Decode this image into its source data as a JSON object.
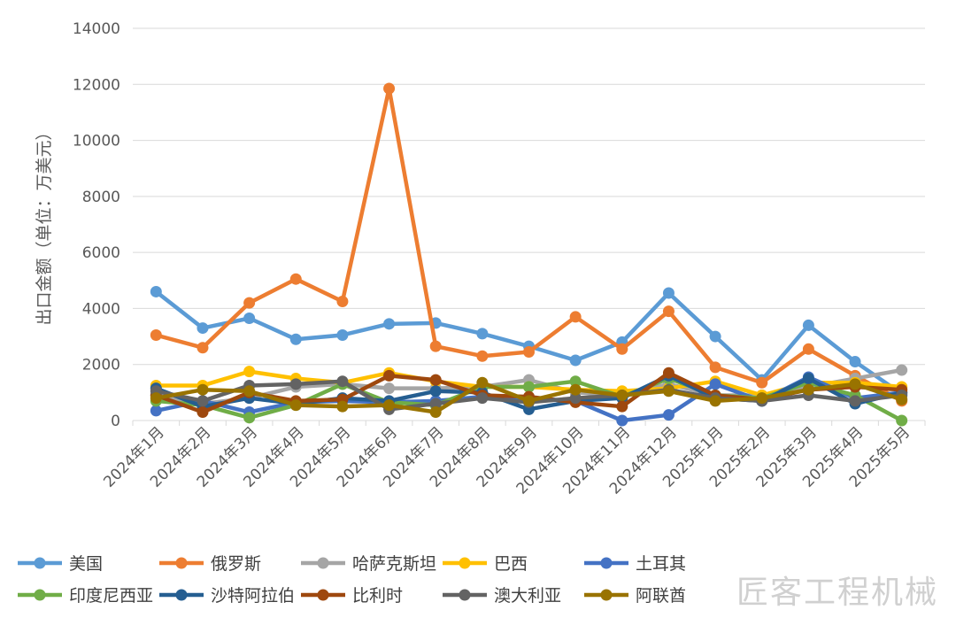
{
  "chart_data": {
    "type": "line",
    "title": "",
    "xlabel": "",
    "ylabel": "出口金额（单位：万美元）",
    "ylim": [
      0,
      14000
    ],
    "yticks": [
      0,
      2000,
      4000,
      6000,
      8000,
      10000,
      12000,
      14000
    ],
    "grid": true,
    "legend": "bottom",
    "categories": [
      "2024年1月",
      "2024年2月",
      "2024年3月",
      "2024年4月",
      "2024年5月",
      "2024年6月",
      "2024年7月",
      "2024年8月",
      "2024年9月",
      "2024年10月",
      "2024年11月",
      "2024年12月",
      "2025年1月",
      "2025年2月",
      "2025年3月",
      "2025年4月",
      "2025年5月"
    ],
    "series": [
      {
        "name": "美国",
        "color": "#5b9bd5",
        "values": [
          4600,
          3300,
          3650,
          2900,
          3050,
          3450,
          3480,
          3100,
          2650,
          2150,
          2800,
          4550,
          3000,
          1450,
          3400,
          2100,
          950
        ]
      },
      {
        "name": "俄罗斯",
        "color": "#ed7d31",
        "values": [
          3050,
          2600,
          4200,
          5050,
          4250,
          11850,
          2650,
          2300,
          2450,
          3700,
          2550,
          3900,
          1900,
          1350,
          2550,
          1600,
          700
        ]
      },
      {
        "name": "哈萨克斯坦",
        "color": "#a5a5a5",
        "values": [
          900,
          600,
          800,
          1200,
          1300,
          1150,
          1150,
          1200,
          1450,
          1000,
          900,
          1300,
          900,
          900,
          1200,
          1500,
          1800
        ]
      },
      {
        "name": "巴西",
        "color": "#ffc000",
        "values": [
          1250,
          1250,
          1750,
          1500,
          1350,
          1700,
          1400,
          1200,
          1200,
          1100,
          1050,
          1150,
          1400,
          900,
          1350,
          1350,
          1200
        ]
      },
      {
        "name": "土耳其",
        "color": "#4472c4",
        "values": [
          350,
          700,
          300,
          650,
          700,
          650,
          700,
          850,
          800,
          700,
          0,
          200,
          1300,
          700,
          1550,
          800,
          1000
        ]
      },
      {
        "name": "印度尼西亚",
        "color": "#70ad47",
        "values": [
          700,
          550,
          100,
          550,
          1300,
          650,
          550,
          1200,
          1200,
          1400,
          850,
          1500,
          900,
          800,
          1350,
          900,
          0
        ]
      },
      {
        "name": "沙特阿拉伯",
        "color": "#255e91",
        "values": [
          1150,
          500,
          800,
          600,
          800,
          700,
          1050,
          1000,
          400,
          700,
          800,
          1600,
          800,
          700,
          1500,
          600,
          1000
        ]
      },
      {
        "name": "比利时",
        "color": "#9e480e",
        "values": [
          900,
          300,
          1000,
          700,
          750,
          1600,
          1450,
          900,
          850,
          650,
          500,
          1700,
          900,
          750,
          1100,
          1200,
          1100
        ]
      },
      {
        "name": "澳大利亚",
        "color": "#636363",
        "values": [
          1050,
          700,
          1250,
          1300,
          1400,
          400,
          600,
          800,
          650,
          800,
          900,
          1100,
          800,
          700,
          900,
          700,
          900
        ]
      },
      {
        "name": "阿联酋",
        "color": "#997300",
        "values": [
          800,
          1100,
          1050,
          550,
          500,
          550,
          300,
          1350,
          700,
          1100,
          900,
          1050,
          700,
          800,
          1100,
          1300,
          750
        ]
      }
    ]
  },
  "watermark": "匠客工程机械"
}
